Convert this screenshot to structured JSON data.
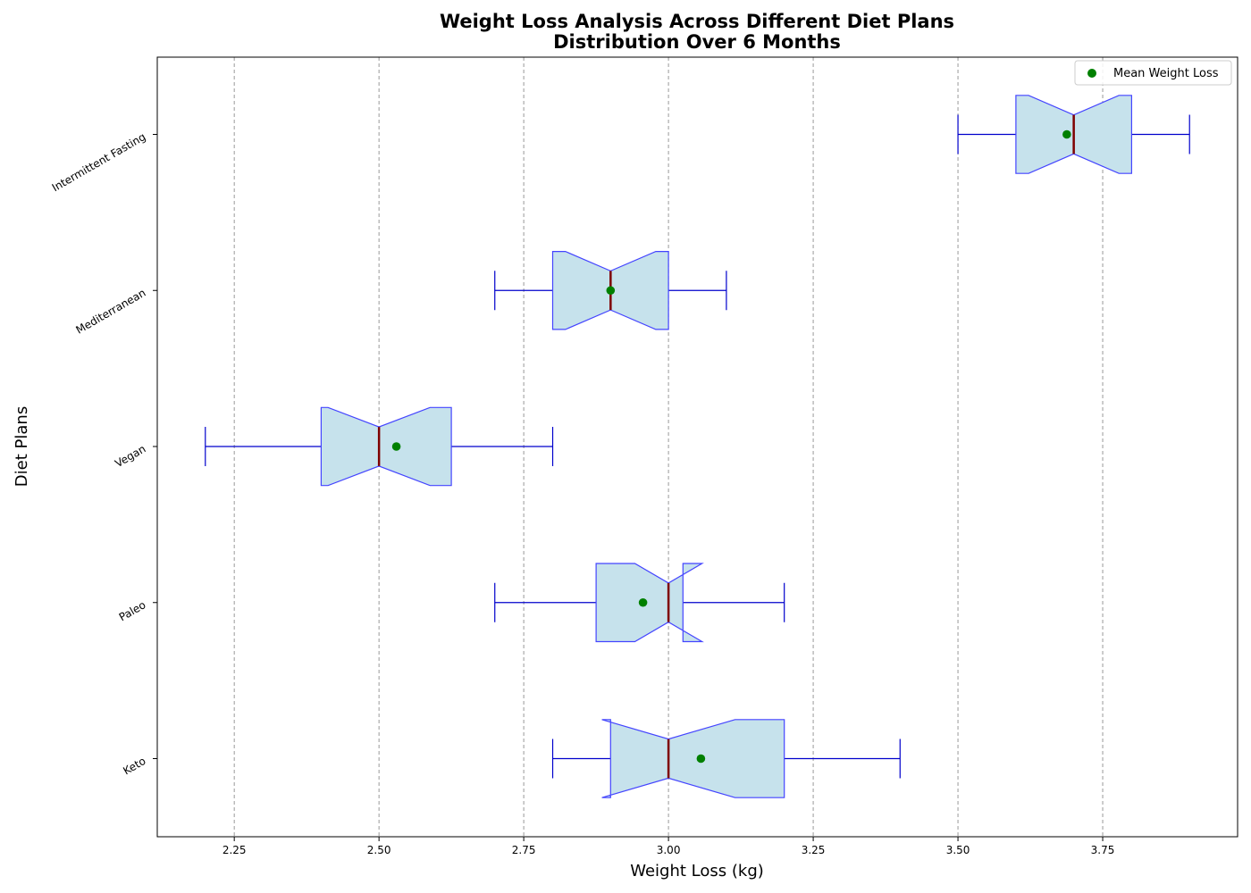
{
  "chart_data": {
    "type": "boxplot",
    "orientation": "horizontal",
    "notched": true,
    "title_lines": [
      "Weight Loss Analysis Across Different Diet Plans",
      "Distribution Over 6 Months"
    ],
    "xlabel": "Weight Loss (kg)",
    "ylabel": "Diet Plans",
    "xlim": [
      2.117,
      3.983
    ],
    "xticks": [
      2.25,
      2.5,
      2.75,
      3.0,
      3.25,
      3.5,
      3.75
    ],
    "xtick_labels": [
      "2.25",
      "2.50",
      "2.75",
      "3.00",
      "3.25",
      "3.50",
      "3.75"
    ],
    "grid": "x-major-dashed",
    "legend": {
      "placement": "top-right",
      "label": "Mean Weight Loss"
    },
    "colors": {
      "box_fill": "#c6e2ec",
      "box_edge": "#4444ff",
      "whisker": "#0000cc",
      "median": "#7f0000",
      "mean": "#008000",
      "grid": "#999999"
    },
    "categories": [
      "Keto",
      "Paleo",
      "Vegan",
      "Mediterranean",
      "Intermittent Fasting"
    ],
    "boxes": [
      {
        "name": "Keto",
        "whisker_low": 2.8,
        "q1": 2.9,
        "median": 3.0,
        "q3": 3.2,
        "whisker_high": 3.4,
        "notch_low": 2.885,
        "notch_high": 3.115,
        "mean": 3.056
      },
      {
        "name": "Paleo",
        "whisker_low": 2.7,
        "q1": 2.875,
        "median": 3.0,
        "q3": 3.025,
        "whisker_high": 3.2,
        "notch_low": 2.942,
        "notch_high": 3.058,
        "mean": 2.956
      },
      {
        "name": "Vegan",
        "whisker_low": 2.2,
        "q1": 2.4,
        "median": 2.5,
        "q3": 2.625,
        "whisker_high": 2.8,
        "notch_low": 2.412,
        "notch_high": 2.588,
        "mean": 2.53
      },
      {
        "name": "Mediterranean",
        "whisker_low": 2.7,
        "q1": 2.8,
        "median": 2.9,
        "q3": 3.0,
        "whisker_high": 3.1,
        "notch_low": 2.822,
        "notch_high": 2.978,
        "mean": 2.9
      },
      {
        "name": "Intermittent Fasting",
        "whisker_low": 3.5,
        "q1": 3.6,
        "median": 3.7,
        "q3": 3.8,
        "whisker_high": 3.9,
        "notch_low": 3.622,
        "notch_high": 3.778,
        "mean": 3.688
      }
    ]
  }
}
